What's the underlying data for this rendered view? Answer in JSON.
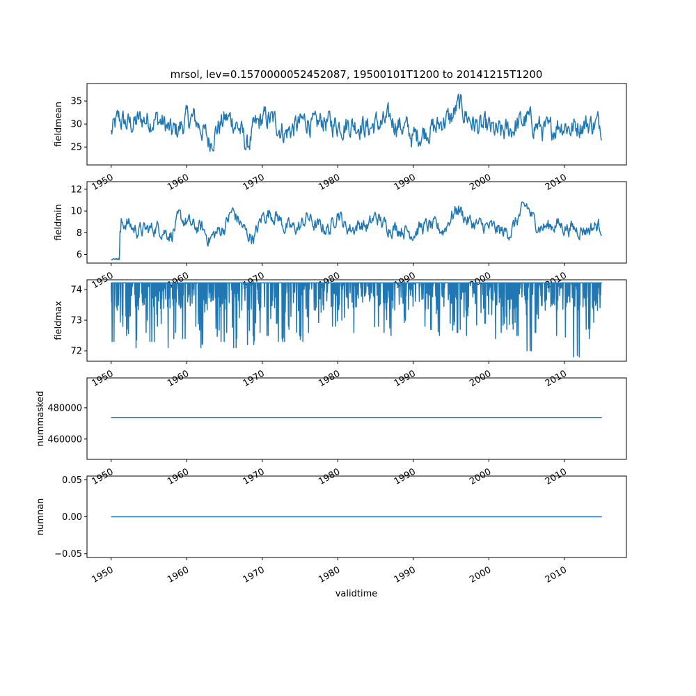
{
  "chart_data": [
    {
      "type": "line",
      "title": "mrsol, lev=0.1570000052452087, 19500101T1200 to 20141215T1200",
      "ylabel": "fieldmean",
      "xlabel": "",
      "ylim": [
        21.1,
        38.8
      ],
      "yticks": [
        25,
        30,
        35
      ],
      "ytick_labels": [
        "25",
        "30",
        "35"
      ],
      "noise": 3.0,
      "x_years": [
        1950,
        1951,
        1952,
        1953,
        1954,
        1955,
        1956,
        1957,
        1958,
        1959,
        1960,
        1961,
        1962,
        1963,
        1964,
        1965,
        1966,
        1967,
        1968,
        1969,
        1970,
        1971,
        1972,
        1973,
        1974,
        1975,
        1976,
        1977,
        1978,
        1979,
        1980,
        1981,
        1982,
        1983,
        1984,
        1985,
        1986,
        1987,
        1988,
        1989,
        1990,
        1991,
        1992,
        1993,
        1994,
        1995,
        1996,
        1997,
        1998,
        1999,
        2000,
        2001,
        2002,
        2003,
        2004,
        2005,
        2006,
        2007,
        2008,
        2009,
        2010,
        2011,
        2012,
        2013,
        2014
      ],
      "values": [
        28,
        31,
        30,
        30,
        31,
        31,
        31,
        30,
        28,
        29,
        31,
        31,
        29,
        26,
        29,
        31,
        31,
        29,
        25,
        29,
        31,
        31,
        30,
        28,
        29,
        30,
        31,
        29,
        31,
        30,
        30,
        30,
        30,
        30,
        29,
        30,
        30,
        31,
        30,
        29,
        27,
        28,
        29,
        29,
        31,
        31,
        34,
        32,
        30,
        29,
        29,
        28,
        28,
        29,
        30,
        31,
        30,
        29,
        28,
        30,
        30,
        29,
        30,
        30,
        30
      ]
    },
    {
      "type": "line",
      "ylabel": "fieldmin",
      "ylim": [
        5.2,
        12.7
      ],
      "yticks": [
        6,
        8,
        10,
        12
      ],
      "ytick_labels": [
        "6",
        "8",
        "10",
        "12"
      ],
      "noise": 0.8,
      "x_years": [
        1950,
        1951,
        1952,
        1953,
        1954,
        1955,
        1956,
        1957,
        1958,
        1959,
        1960,
        1961,
        1962,
        1963,
        1964,
        1965,
        1966,
        1967,
        1968,
        1969,
        1970,
        1971,
        1972,
        1973,
        1974,
        1975,
        1976,
        1977,
        1978,
        1979,
        1980,
        1981,
        1982,
        1983,
        1984,
        1985,
        1986,
        1987,
        1988,
        1989,
        1990,
        1991,
        1992,
        1993,
        1994,
        1995,
        1996,
        1997,
        1998,
        1999,
        2000,
        2001,
        2002,
        2003,
        2004,
        2005,
        2006,
        2007,
        2008,
        2009,
        2010,
        2011,
        2012,
        2013,
        2014
      ],
      "values": [
        5.5,
        8.5,
        9,
        8.3,
        8.2,
        8.3,
        8.5,
        8.2,
        7.8,
        9.3,
        9,
        8.5,
        8.4,
        7.4,
        8,
        8.5,
        10,
        9,
        7.8,
        7.6,
        9.5,
        9.8,
        9.5,
        8.5,
        8.4,
        8.5,
        9.5,
        8.6,
        8.5,
        8.3,
        10,
        8.5,
        8.4,
        8.8,
        8.5,
        9.5,
        8.8,
        8.5,
        8.4,
        8.2,
        8,
        8.5,
        8.6,
        8.5,
        8.2,
        9.5,
        10.3,
        9.2,
        8.8,
        8.6,
        8.5,
        8.3,
        8,
        8.2,
        9.5,
        10.5,
        9,
        8.5,
        8.6,
        8.8,
        8.5,
        8.4,
        8.3,
        8.3,
        8.6
      ]
    },
    {
      "type": "line",
      "ylabel": "fieldmax",
      "ylim": [
        71.66,
        74.32
      ],
      "yticks": [
        72,
        73,
        74
      ],
      "ytick_labels": [
        "72",
        "73",
        "74"
      ],
      "upper_value": 74.22,
      "x_years": [
        1950,
        1951,
        1952,
        1953,
        1954,
        1955,
        1956,
        1957,
        1958,
        1959,
        1960,
        1961,
        1962,
        1963,
        1964,
        1965,
        1966,
        1967,
        1968,
        1969,
        1970,
        1971,
        1972,
        1973,
        1974,
        1975,
        1976,
        1977,
        1978,
        1979,
        1980,
        1981,
        1982,
        1983,
        1984,
        1985,
        1986,
        1987,
        1988,
        1989,
        1990,
        1991,
        1992,
        1993,
        1994,
        1995,
        1996,
        1997,
        1998,
        1999,
        2000,
        2001,
        2002,
        2003,
        2004,
        2005,
        2006,
        2007,
        2008,
        2009,
        2010,
        2011,
        2012,
        2013,
        2014
      ],
      "yearly_min": [
        72.3,
        72.8,
        72.5,
        72.1,
        72.6,
        72.3,
        72.8,
        72.1,
        72.4,
        72.4,
        73.3,
        72.1,
        72.2,
        72.4,
        72.3,
        72.6,
        72.1,
        72.5,
        72.2,
        72.6,
        72.5,
        72.9,
        72.3,
        72.7,
        72.5,
        72.3,
        72.6,
        72.6,
        72.2,
        72.8,
        73.0,
        72.9,
        72.6,
        72.8,
        72.5,
        72.8,
        72.6,
        72.5,
        72.8,
        72.9,
        72.1,
        72.8,
        72.7,
        72.5,
        72.9,
        72.6,
        72.7,
        72.5,
        72.8,
        72.9,
        72.4,
        72.6,
        72.7,
        72.5,
        72.7,
        72.0,
        72.6,
        72.6,
        72.5,
        72.7,
        72.2,
        71.8,
        72.7,
        72.4,
        72.3
      ]
    },
    {
      "type": "line",
      "ylabel": "nummasked",
      "ylim": [
        447000,
        499100
      ],
      "yticks": [
        460000,
        480000
      ],
      "ytick_labels": [
        "460000",
        "480000"
      ],
      "x_years": [
        1950,
        2014.95
      ],
      "values": [
        473800,
        473800
      ]
    },
    {
      "type": "line",
      "ylabel": "numnan",
      "xlabel": "validtime",
      "ylim": [
        -0.055,
        0.055
      ],
      "yticks": [
        -0.05,
        0.0,
        0.05
      ],
      "ytick_labels": [
        "−0.05",
        "0.00",
        "0.05"
      ],
      "x_years": [
        1950,
        2014.95
      ],
      "values": [
        0,
        0
      ]
    }
  ],
  "x_axis": {
    "ticks": [
      1950,
      1960,
      1970,
      1980,
      1990,
      2000,
      2010
    ],
    "tick_labels": [
      "1950",
      "1960",
      "1970",
      "1980",
      "1990",
      "2000",
      "2010"
    ],
    "xlim": [
      1946.8,
      2018.2
    ]
  },
  "colors": {
    "line": "#1f77b4"
  }
}
